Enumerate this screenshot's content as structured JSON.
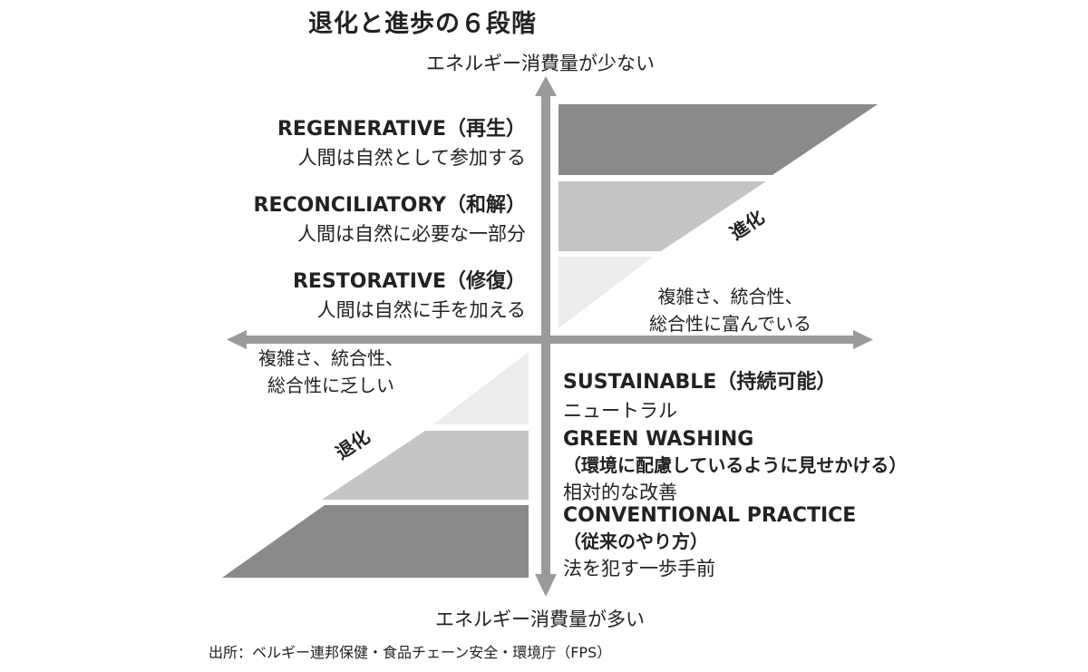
{
  "title": "退化と進歩の６段階",
  "axis_top": "エネルギー消費量が少ない",
  "axis_bottom": "エネルギー消費量が多い",
  "right_label": [
    "複雑さ、統合性、",
    "総合性に富んでいる"
  ],
  "left_label": [
    "複雑さ、統合性、",
    "総合性に乏しい"
  ],
  "evolution_label": "進化",
  "regression_label": "退化",
  "stages": [
    {
      "name": "REGENERATIVE（再生）",
      "desc": "人間は自然として参加する"
    },
    {
      "name": "RECONCILIATORY（和解）",
      "desc": "人間は自然に必要な一部分"
    },
    {
      "name": "RESTORATIVE（修復）",
      "desc": "人間は自然に手を加える"
    },
    {
      "name": "SUSTAINABLE（持続可能）",
      "desc": "ニュートラル"
    },
    {
      "name": "GREEN WASHING",
      "sub": "（環境に配慮しているように見せかける）",
      "desc": "相対的な改善"
    },
    {
      "name": "CONVENTIONAL PRACTICE",
      "sub": "（従来のやり方）",
      "desc": "法を犯す一歩手前"
    }
  ],
  "source": "出所：ベルギー連邦保健・食品チェーン安全・環境庁（FPS）",
  "colors": {
    "dark": "#8a8a8a",
    "medium": "#c4c4c4",
    "light": "#ececec",
    "arrow": "#9a9a9a"
  }
}
